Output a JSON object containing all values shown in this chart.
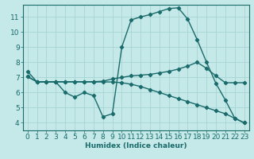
{
  "xlabel": "Humidex (Indice chaleur)",
  "bg_color": "#c5e8e8",
  "line_color": "#1a6b6b",
  "xlim": [
    -0.5,
    23.5
  ],
  "ylim": [
    3.5,
    11.8
  ],
  "xticks": [
    0,
    1,
    2,
    3,
    4,
    5,
    6,
    7,
    8,
    9,
    10,
    11,
    12,
    13,
    14,
    15,
    16,
    17,
    18,
    19,
    20,
    21,
    22,
    23
  ],
  "yticks": [
    4,
    5,
    6,
    7,
    8,
    9,
    10,
    11
  ],
  "line1_x": [
    0,
    1,
    2,
    3,
    4,
    5,
    6,
    7,
    8,
    9,
    10,
    11,
    12,
    13,
    14,
    15,
    16,
    17,
    18,
    19,
    20,
    21,
    22,
    23
  ],
  "line1_y": [
    7.4,
    6.7,
    6.7,
    6.7,
    6.0,
    5.7,
    6.0,
    5.8,
    4.4,
    4.6,
    9.0,
    10.8,
    11.0,
    11.15,
    11.35,
    11.55,
    11.6,
    10.85,
    9.5,
    8.0,
    6.6,
    5.5,
    4.3,
    4.0
  ],
  "line2_x": [
    0,
    1,
    2,
    3,
    4,
    5,
    6,
    7,
    8,
    9,
    10,
    11,
    12,
    13,
    14,
    15,
    16,
    17,
    18,
    19,
    20,
    21,
    22,
    23
  ],
  "line2_y": [
    7.05,
    6.72,
    6.72,
    6.72,
    6.72,
    6.72,
    6.72,
    6.72,
    6.75,
    6.9,
    7.0,
    7.1,
    7.15,
    7.2,
    7.3,
    7.4,
    7.55,
    7.75,
    8.0,
    7.6,
    7.1,
    6.65,
    6.65,
    6.65
  ],
  "line3_x": [
    0,
    1,
    2,
    3,
    4,
    5,
    6,
    7,
    8,
    9,
    10,
    11,
    12,
    13,
    14,
    15,
    16,
    17,
    18,
    19,
    20,
    21,
    22,
    23
  ],
  "line3_y": [
    7.05,
    6.7,
    6.7,
    6.7,
    6.7,
    6.7,
    6.7,
    6.7,
    6.7,
    6.7,
    6.65,
    6.55,
    6.4,
    6.2,
    6.0,
    5.8,
    5.6,
    5.4,
    5.2,
    5.0,
    4.8,
    4.6,
    4.3,
    4.0
  ],
  "grid_color": "#a0d0d0",
  "marker": "D",
  "markersize": 2.2,
  "linewidth": 1.0,
  "font_size": 6.5
}
